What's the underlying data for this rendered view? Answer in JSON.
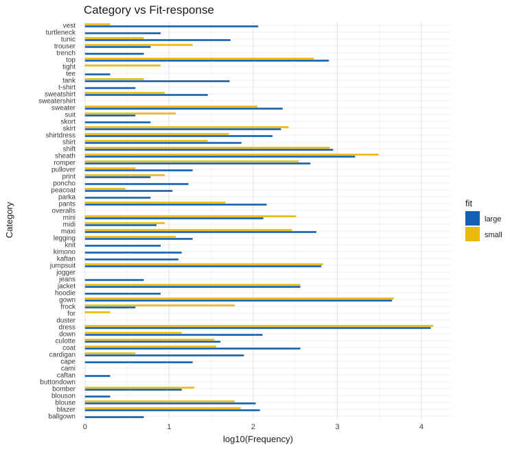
{
  "chart_data": {
    "type": "bar",
    "orientation": "horizontal",
    "title": "Category vs Fit-response",
    "xlabel": "log10(Frequency)",
    "ylabel": "Category",
    "xlim": [
      -0.08,
      4.35
    ],
    "xticks": [
      0,
      1,
      2,
      3,
      4
    ],
    "grid": true,
    "legend_title": "fit",
    "legend_position": "right",
    "colors": {
      "large": "#1560b3",
      "small": "#e9b90b"
    },
    "categories": [
      "ballgown",
      "blazer",
      "blouse",
      "blouson",
      "bomber",
      "buttondown",
      "caftan",
      "cami",
      "cape",
      "cardigan",
      "coat",
      "culotte",
      "down",
      "dress",
      "duster",
      "for",
      "frock",
      "gown",
      "hoodie",
      "jacket",
      "jeans",
      "jogger",
      "jumpsuit",
      "kaftan",
      "kimono",
      "knit",
      "legging",
      "maxi",
      "midi",
      "mini",
      "overalls",
      "pants",
      "parka",
      "peacoat",
      "poncho",
      "print",
      "pullover",
      "romper",
      "sheath",
      "shift",
      "shirt",
      "shirtdress",
      "skirt",
      "skort",
      "suit",
      "sweater",
      "sweatershirt",
      "sweatshirt",
      "t-shirt",
      "tank",
      "tee",
      "tight",
      "top",
      "trench",
      "trouser",
      "tunic",
      "turtleneck",
      "vest"
    ],
    "series": [
      {
        "name": "large",
        "values": [
          0.7,
          2.08,
          2.03,
          0.3,
          1.15,
          0,
          0.3,
          0,
          1.28,
          1.89,
          2.56,
          1.61,
          2.11,
          4.11,
          0,
          0,
          0.6,
          3.65,
          0.9,
          2.56,
          0.7,
          0,
          2.81,
          1.11,
          1.15,
          0.9,
          1.28,
          2.75,
          0.85,
          2.12,
          0,
          2.16,
          0.78,
          1.04,
          1.23,
          0.78,
          1.28,
          2.68,
          3.21,
          2.95,
          1.86,
          2.23,
          2.33,
          0.78,
          0.6,
          2.35,
          0,
          1.46,
          0.6,
          1.72,
          0.3,
          0,
          2.9,
          0.7,
          0.78,
          1.73,
          0.9,
          2.06
        ]
      },
      {
        "name": "small",
        "values": [
          0,
          1.85,
          1.78,
          0,
          1.3,
          0,
          0,
          0,
          0,
          0.6,
          1.56,
          1.54,
          1.15,
          4.14,
          0,
          0.3,
          1.78,
          3.67,
          0,
          2.56,
          0,
          0,
          2.83,
          0,
          0,
          0,
          1.08,
          2.46,
          0.95,
          2.51,
          0,
          1.67,
          0,
          0.48,
          0,
          0.95,
          0.6,
          2.54,
          3.49,
          2.91,
          1.46,
          1.71,
          2.42,
          0,
          1.08,
          2.05,
          0,
          0.95,
          0,
          0.7,
          0,
          0.9,
          2.72,
          0,
          1.28,
          0.7,
          0,
          0.3
        ]
      }
    ]
  }
}
